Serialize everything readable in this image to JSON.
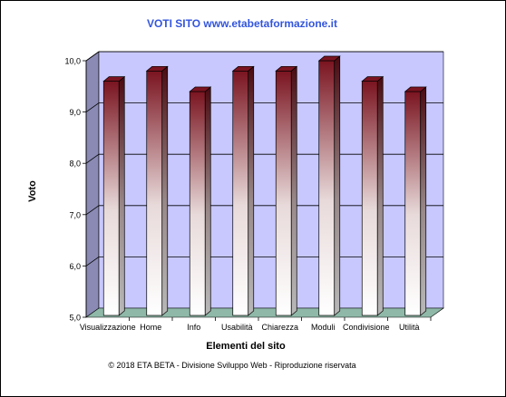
{
  "chart_data": {
    "type": "bar",
    "title": "VOTI SITO www.etabetaformazione.it",
    "xlabel": "Elementi del sito",
    "ylabel": "Voto",
    "categories": [
      "Visualizzazione",
      "Home",
      "Info",
      "Usabilità",
      "Chiarezza",
      "Moduli",
      "Condivisione",
      "Utilità"
    ],
    "values": [
      9.6,
      9.8,
      9.4,
      9.8,
      9.8,
      10.0,
      9.6,
      9.4
    ],
    "ylim": [
      5.0,
      10.0
    ],
    "yticks": [
      "5,0",
      "6,0",
      "7,0",
      "8,0",
      "9,0",
      "10,0"
    ],
    "grid": true,
    "three_d": true,
    "colors": {
      "title": "#3355dd",
      "bar_top": "#7a1420",
      "bar_bottom": "#ffffff",
      "back_wall": "#c8c8ff",
      "side_wall": "#8a8ab4",
      "floor": "#8fb8a8"
    }
  },
  "footer": "© 2018 ETA BETA - Divisione Sviluppo Web - Riproduzione riservata"
}
